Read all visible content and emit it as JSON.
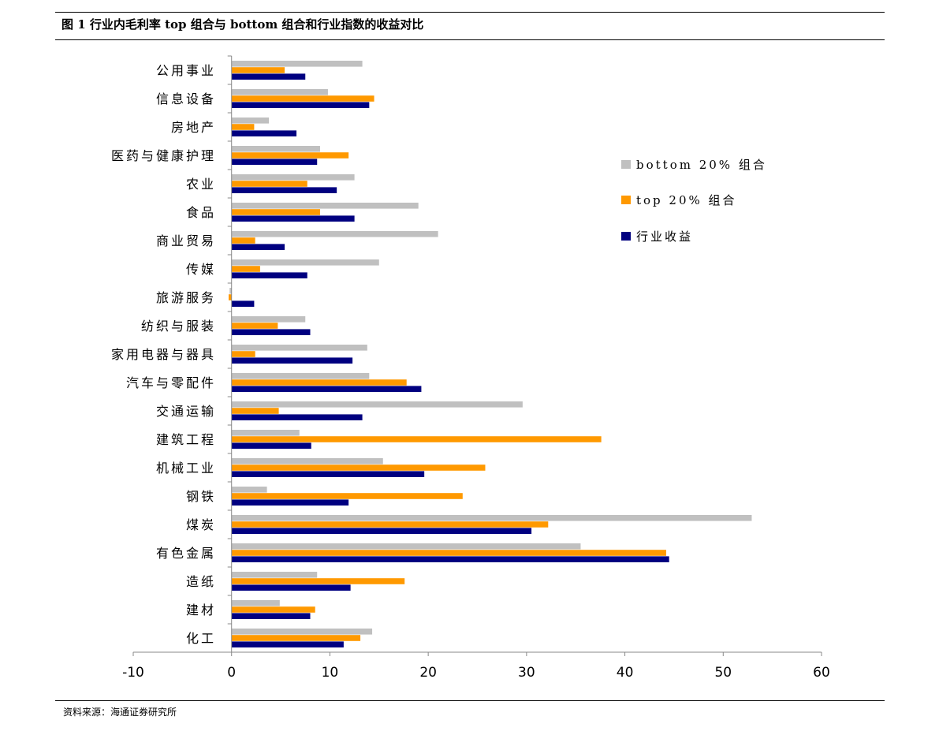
{
  "header": {
    "title": "图 1 行业内毛利率 top 组合与 bottom 组合和行业指数的收益对比"
  },
  "footer": {
    "source": "资料来源：海通证券研究所"
  },
  "chart_data": {
    "type": "bar",
    "orientation": "horizontal",
    "categories": [
      "公用事业",
      "信息设备",
      "房地产",
      "医药与健康护理",
      "农业",
      "食品",
      "商业贸易",
      "传媒",
      "旅游服务",
      "纺织与服装",
      "家用电器与器具",
      "汽车与零配件",
      "交通运输",
      "建筑工程",
      "机械工业",
      "钢铁",
      "煤炭",
      "有色金属",
      "造纸",
      "建材",
      "化工"
    ],
    "series": [
      {
        "name": "bottom 20% 组合",
        "color": "#c0c0c0",
        "values": [
          13.3,
          9.8,
          3.8,
          9.0,
          12.5,
          19.0,
          21.0,
          15.0,
          -0.2,
          7.5,
          13.8,
          14.0,
          29.6,
          6.9,
          15.4,
          3.6,
          52.9,
          35.5,
          8.7,
          4.9,
          14.3
        ]
      },
      {
        "name": "top 20% 组合",
        "color": "#ff9900",
        "values": [
          5.4,
          14.5,
          2.3,
          11.9,
          7.7,
          9.0,
          2.4,
          2.9,
          -0.3,
          4.7,
          2.4,
          17.8,
          4.8,
          37.6,
          25.8,
          23.5,
          32.2,
          44.2,
          17.6,
          8.5,
          13.1
        ]
      },
      {
        "name": "行业收益",
        "color": "#000080",
        "values": [
          7.5,
          14.0,
          6.6,
          8.7,
          10.7,
          12.5,
          5.4,
          7.7,
          2.3,
          8.0,
          12.3,
          19.3,
          13.3,
          8.1,
          19.6,
          11.9,
          30.5,
          44.5,
          12.1,
          8.0,
          11.4
        ]
      }
    ],
    "xlim": [
      -10,
      60
    ],
    "xticks": [
      "-10",
      "0",
      "10",
      "20",
      "30",
      "40",
      "50",
      "60"
    ],
    "legend_position": "right",
    "grid": false
  }
}
